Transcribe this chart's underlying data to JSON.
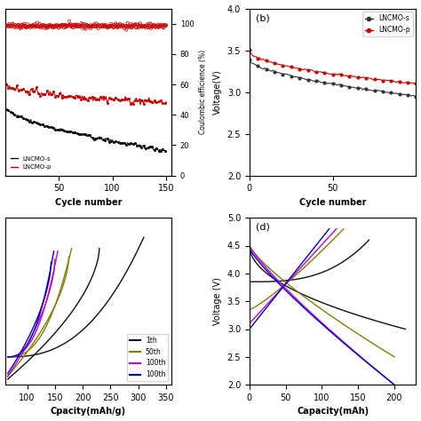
{
  "panel_a": {
    "xlabel": "Cycle number",
    "ylabel_right": "Coulombic efficience (%)",
    "xlim": [
      0,
      155
    ],
    "ylim_capacity": [
      30,
      110
    ],
    "ylim_ce": [
      0,
      110
    ],
    "yticks_ce": [
      0,
      20,
      40,
      60,
      80,
      100
    ],
    "xticks": [
      50,
      100,
      150
    ],
    "cap_s_start": 63,
    "cap_s_end": 42,
    "cap_p_start": 75,
    "cap_p_end": 65,
    "ce_level": 98.5,
    "legend_labels": [
      "LNCMO-s",
      "LNCMO-p"
    ],
    "colors_cap": [
      "#111111",
      "#cc0000"
    ],
    "color_ce": "#cc0000"
  },
  "panel_b": {
    "title": "(b)",
    "xlabel": "Cycle number",
    "ylabel": "Voltage(V)",
    "xlim": [
      0,
      100
    ],
    "ylim": [
      2.0,
      4.0
    ],
    "yticks": [
      2.0,
      2.5,
      3.0,
      3.5,
      4.0
    ],
    "xticks": [
      0,
      50
    ],
    "legend_labels": [
      "LNCMO-s",
      "LNCMO-p"
    ],
    "colors": [
      "#333333",
      "#cc0000"
    ],
    "s_start": 3.38,
    "s_end": 2.95,
    "p_start": 3.5,
    "p_end": 3.1
  },
  "panel_c": {
    "xlabel": "Cpacity(mAh/g)",
    "xlim": [
      60,
      360
    ],
    "ylim": [
      2.0,
      5.0
    ],
    "xticks": [
      100,
      150,
      200,
      250,
      300,
      350
    ],
    "legend_labels": [
      "1th",
      "50th",
      "100th",
      "100th"
    ],
    "colors": [
      "#111111",
      "#808000",
      "#cc00cc",
      "#0000cc"
    ]
  },
  "panel_d": {
    "title": "(d)",
    "xlabel": "Capacity(mAh)",
    "ylabel": "Voltage (V)",
    "xlim": [
      0,
      230
    ],
    "ylim": [
      2.0,
      5.0
    ],
    "xticks": [
      0,
      50,
      100,
      150,
      200
    ],
    "yticks": [
      2.0,
      2.5,
      3.0,
      3.5,
      4.0,
      4.5,
      5.0
    ],
    "colors": [
      "#111111",
      "#808000",
      "#cc00cc",
      "#0000cc"
    ]
  }
}
